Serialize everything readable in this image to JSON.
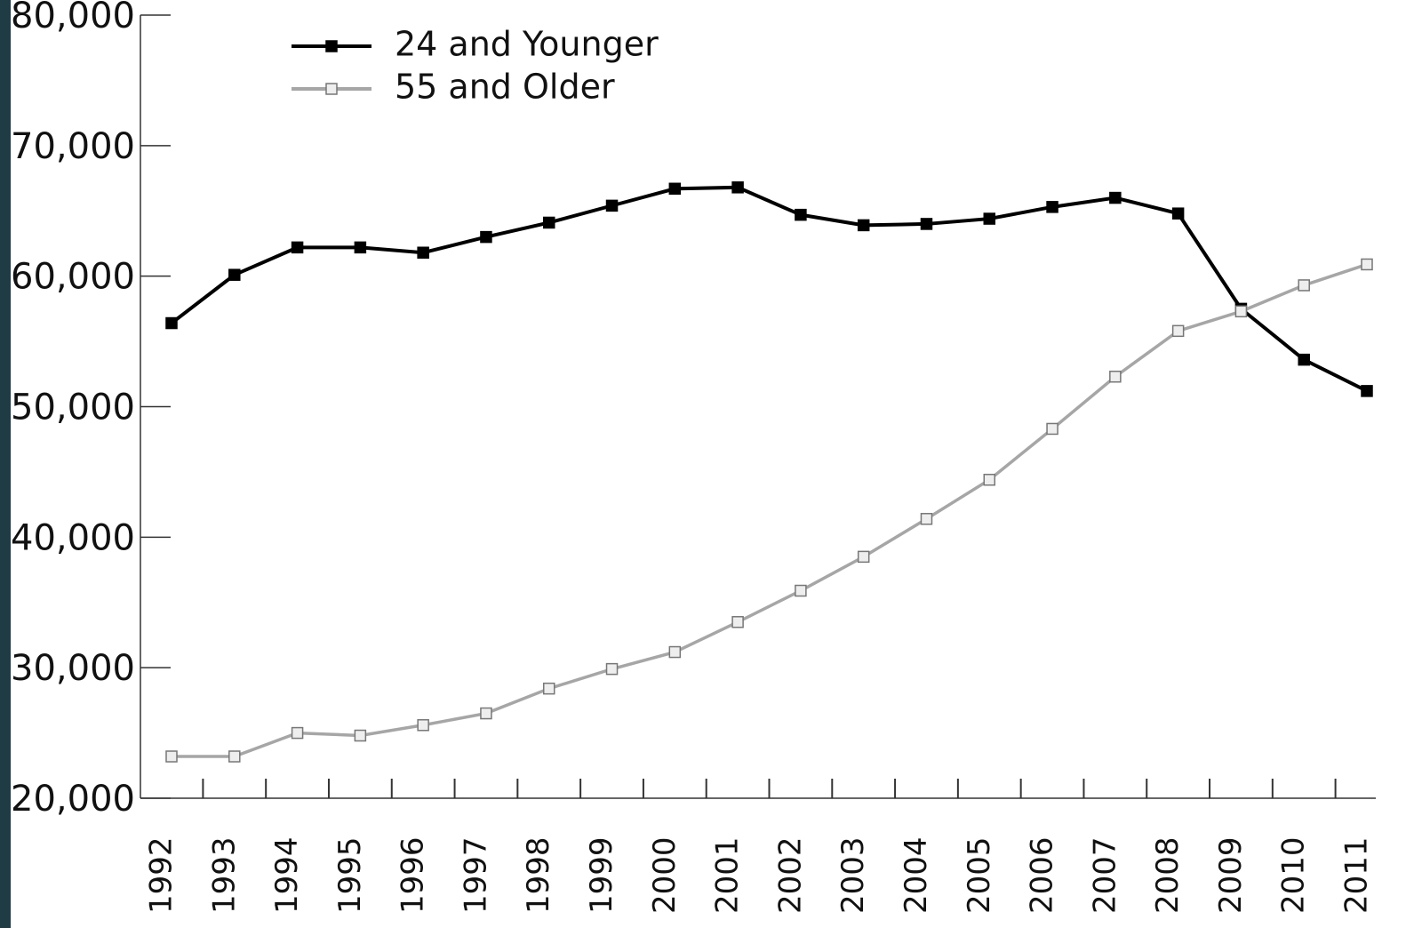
{
  "chart_data": {
    "type": "line",
    "categories": [
      "1992",
      "1993",
      "1994",
      "1995",
      "1996",
      "1997",
      "1998",
      "1999",
      "2000",
      "2001",
      "2002",
      "2003",
      "2004",
      "2005",
      "2006",
      "2007",
      "2008",
      "2009",
      "2010",
      "2011"
    ],
    "series": [
      {
        "name": "24 and Younger",
        "color": "#000000",
        "marker_fill": "#000000",
        "values": [
          56400,
          60100,
          62200,
          62200,
          61800,
          63000,
          64100,
          65400,
          66700,
          66800,
          64700,
          63900,
          64000,
          64400,
          65300,
          66000,
          64800,
          57500,
          53600,
          51200
        ]
      },
      {
        "name": "55 and Older",
        "color": "#a6a6a6",
        "marker_fill": "#eeeeee",
        "values": [
          23200,
          23200,
          25000,
          24800,
          25600,
          26500,
          28400,
          29900,
          31200,
          33500,
          35900,
          38500,
          41400,
          44400,
          48300,
          52300,
          55800,
          57300,
          59300,
          60900
        ]
      }
    ],
    "ylim": [
      20000,
      80000
    ],
    "yticks": [
      {
        "value": 20000,
        "label": "20,000"
      },
      {
        "value": 30000,
        "label": "30,000"
      },
      {
        "value": 40000,
        "label": "40,000"
      },
      {
        "value": 50000,
        "label": "50,000"
      },
      {
        "value": 60000,
        "label": "60,000"
      },
      {
        "value": 70000,
        "label": "70,000"
      },
      {
        "value": 80000,
        "label": "80,000"
      }
    ],
    "grid": false,
    "legend": "top-left"
  }
}
